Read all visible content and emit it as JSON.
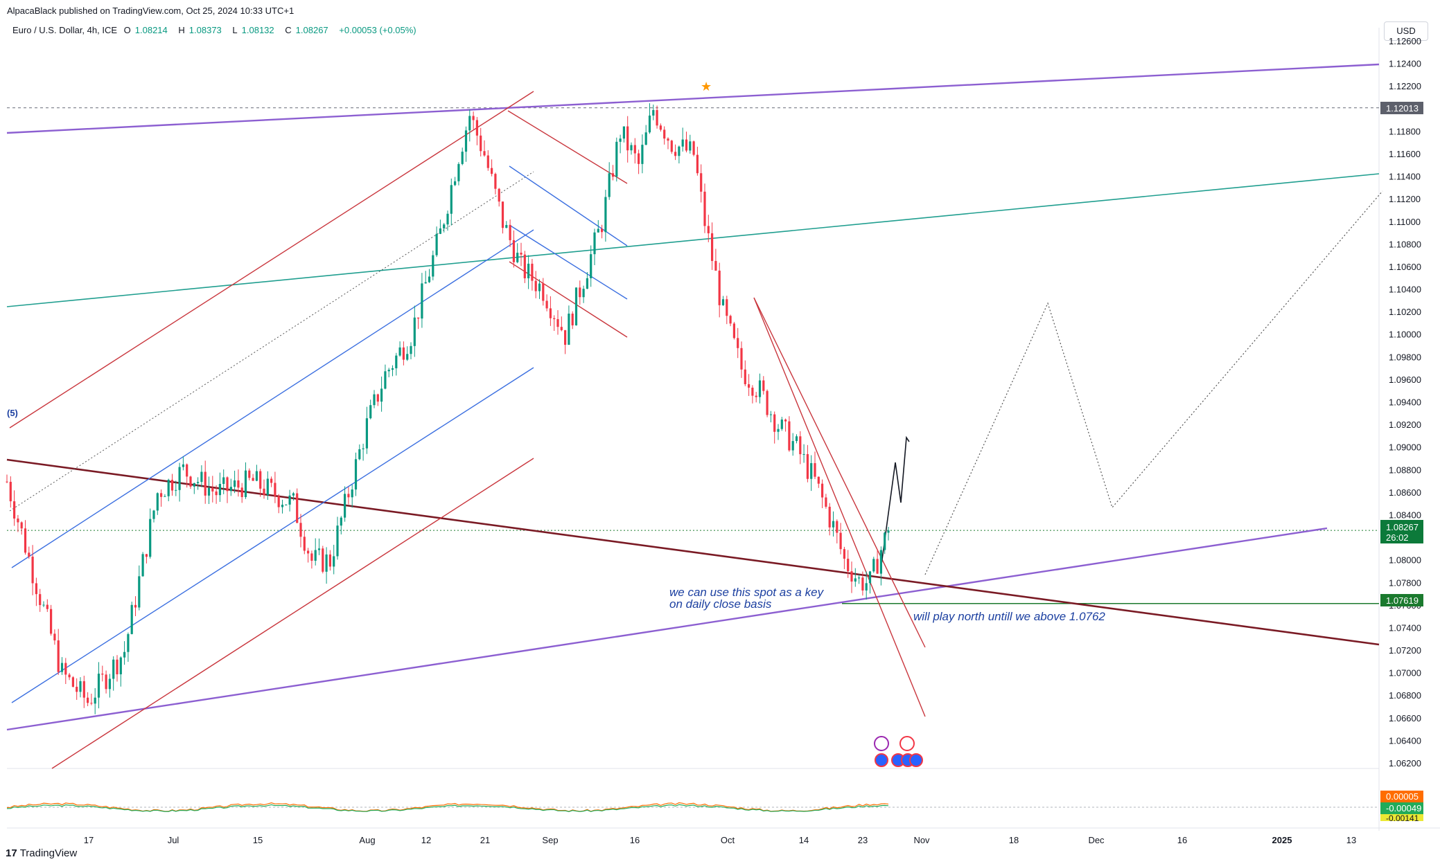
{
  "header": {
    "publisher": "AlpacaBlack published on TradingView.com, Oct 25, 2024 10:33 UTC+1",
    "symbol": "Euro / U.S. Dollar, 4h, ICE",
    "open_label": "O",
    "open": "1.08214",
    "high_label": "H",
    "high": "1.08373",
    "low_label": "L",
    "low": "1.08132",
    "close_label": "C",
    "close": "1.08267",
    "change": "+0.00053 (+0.05%)"
  },
  "currency_button": "USD",
  "footer": {
    "brand": "TradingView",
    "logo_mark": "17"
  },
  "colors": {
    "bull": "#089981",
    "bear": "#f23645",
    "purple": "#8c5fd1",
    "teal": "#1f9e8f",
    "red_channel": "#c9363d",
    "blue_channel": "#3b6fe0",
    "trend": "#7a1a24"
  },
  "chart_data": {
    "type": "candlestick",
    "symbol": "EURUSD",
    "interval": "4h",
    "y_axis": {
      "ticks": [
        "1.12600",
        "1.12400",
        "1.12200",
        "1.12000",
        "1.11800",
        "1.11600",
        "1.11400",
        "1.11200",
        "1.11000",
        "1.10800",
        "1.10600",
        "1.10400",
        "1.10200",
        "1.10000",
        "1.09800",
        "1.09600",
        "1.09400",
        "1.09200",
        "1.09000",
        "1.08800",
        "1.08600",
        "1.08400",
        "1.08200",
        "1.08000",
        "1.07800",
        "1.07600",
        "1.07400",
        "1.07200",
        "1.07000",
        "1.06800",
        "1.06600",
        "1.06400",
        "1.06200"
      ],
      "range": [
        1.0615,
        1.1264
      ]
    },
    "x_axis": {
      "ticks": [
        "17",
        "Jul",
        "15",
        "Aug",
        "12",
        "21",
        "Sep",
        "16",
        "Oct",
        "14",
        "23",
        "Nov",
        "18",
        "Dec",
        "16",
        "2025",
        "13"
      ]
    },
    "price_path": [
      [
        0,
        1.087
      ],
      [
        15,
        1.07
      ],
      [
        22,
        1.0675
      ],
      [
        32,
        1.072
      ],
      [
        41,
        1.086
      ],
      [
        48,
        1.088
      ],
      [
        57,
        1.086
      ],
      [
        67,
        1.087
      ],
      [
        78,
        1.085
      ],
      [
        83,
        1.08
      ],
      [
        88,
        1.08
      ],
      [
        93,
        1.086
      ],
      [
        98,
        1.092
      ],
      [
        103,
        1.0965
      ],
      [
        110,
        1.1
      ],
      [
        118,
        1.109
      ],
      [
        123,
        1.116
      ],
      [
        126,
        1.1195
      ],
      [
        130,
        1.116
      ],
      [
        135,
        1.11
      ],
      [
        140,
        1.106
      ],
      [
        146,
        1.104
      ],
      [
        152,
        1.1
      ],
      [
        157,
        1.105
      ],
      [
        162,
        1.11
      ],
      [
        167,
        1.118
      ],
      [
        172,
        1.115
      ],
      [
        176,
        1.12
      ],
      [
        181,
        1.117
      ],
      [
        187,
        1.116
      ],
      [
        190,
        1.11
      ],
      [
        195,
        1.102
      ],
      [
        200,
        1.097
      ],
      [
        205,
        1.095
      ],
      [
        210,
        1.092
      ],
      [
        215,
        1.09
      ],
      [
        220,
        1.087
      ],
      [
        225,
        1.083
      ],
      [
        228,
        1.08
      ],
      [
        232,
        1.0782
      ],
      [
        235,
        1.078
      ],
      [
        238,
        1.081
      ],
      [
        240,
        1.0827
      ]
    ],
    "horizontal_levels": [
      {
        "price": 1.12013,
        "label": "1.12013"
      },
      {
        "price": 1.07619,
        "label": "1.07619"
      }
    ],
    "last_price": {
      "price": 1.08267,
      "label": "1.08267",
      "countdown": "26:02"
    },
    "wave_label": "(5)",
    "annotations": [
      "we can use this spot as a key",
      "on daily close basis",
      "will play north untill we above 1.0762"
    ],
    "oscillator": {
      "labels": [
        {
          "text": "0.00005",
          "color": "#ff6d00"
        },
        {
          "text": "-0.00049",
          "color": "#22ab5a"
        },
        {
          "text": "-0.00141",
          "color": "#ebe834"
        }
      ]
    },
    "grid": true
  }
}
